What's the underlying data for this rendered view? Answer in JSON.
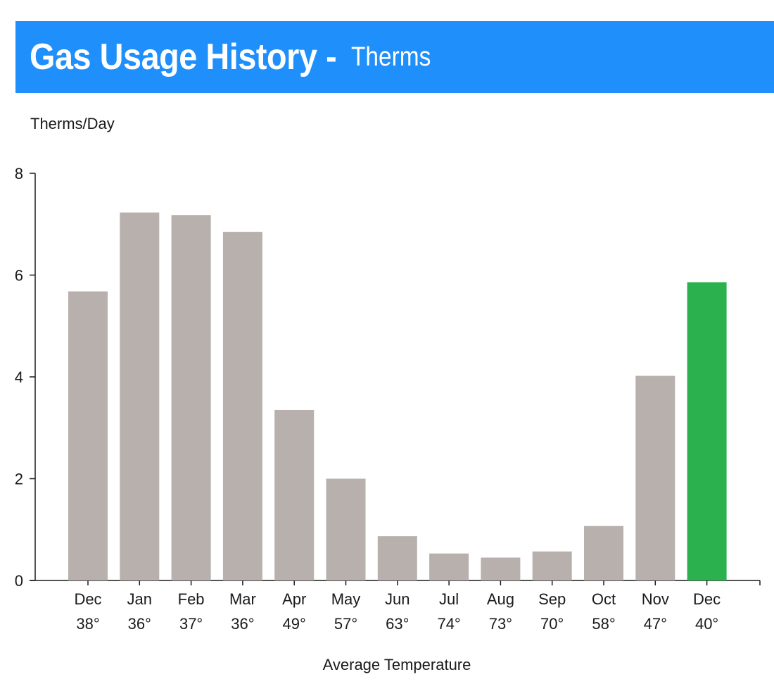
{
  "header": {
    "title": "Gas Usage History -",
    "subtitle": "Therms",
    "background_color": "#1f8ffc"
  },
  "chart_data": {
    "type": "bar",
    "title": "Gas Usage History - Therms",
    "ylabel": "Therms/Day",
    "xlabel": "Average Temperature",
    "ylim": [
      0,
      8
    ],
    "yticks": [
      0,
      2,
      4,
      6,
      8
    ],
    "grid": false,
    "categories": [
      "Dec",
      "Jan",
      "Feb",
      "Mar",
      "Apr",
      "May",
      "Jun",
      "Jul",
      "Aug",
      "Sep",
      "Oct",
      "Nov",
      "Dec"
    ],
    "temperatures": [
      "38°",
      "36°",
      "37°",
      "36°",
      "49°",
      "57°",
      "63°",
      "74°",
      "73°",
      "70°",
      "58°",
      "47°",
      "40°"
    ],
    "values": [
      5.68,
      7.23,
      7.18,
      6.85,
      3.35,
      2.0,
      0.87,
      0.53,
      0.45,
      0.57,
      1.07,
      4.02,
      5.86
    ],
    "bar_color": "#b8b0ad",
    "highlight_index": 12,
    "highlight_color": "#2bb14e"
  }
}
